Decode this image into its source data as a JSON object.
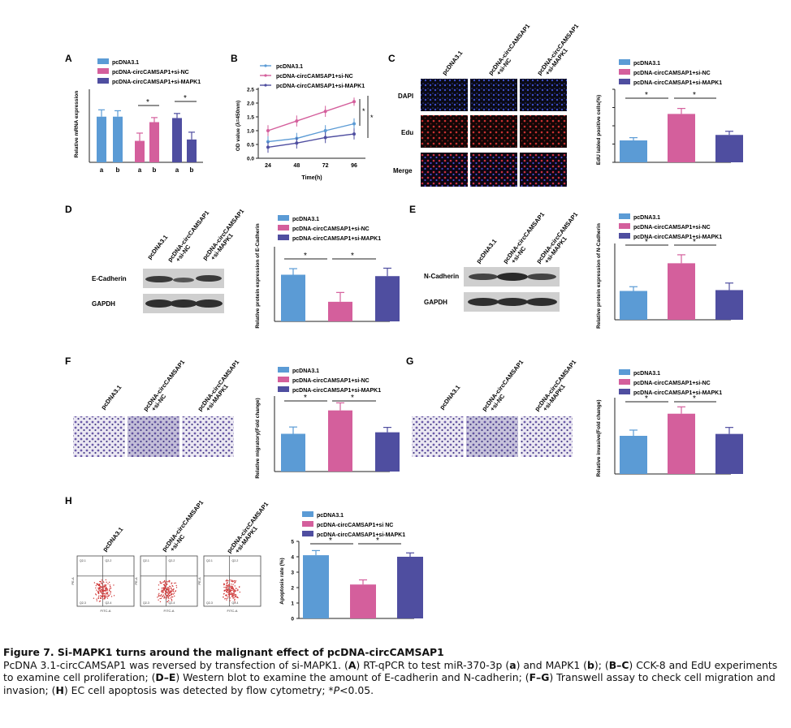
{
  "colors": {
    "c1": "#5b9bd5",
    "c2": "#d45f9c",
    "c3": "#4f4ea0",
    "blot": "#3a3a3a",
    "transwell": "#6b5aa8",
    "flow": "#d03a3a"
  },
  "figure": {
    "panels": [
      {
        "letter": "A"
      },
      {
        "letter": "B"
      },
      {
        "letter": "C"
      },
      {
        "letter": "D"
      },
      {
        "letter": "E"
      },
      {
        "letter": "F"
      },
      {
        "letter": "G"
      },
      {
        "letter": "H"
      }
    ],
    "legend_labels": {
      "l1": "pcDNA3.1",
      "l2": "pcDNA-circCAMSAP1+si-NC",
      "l3": "pcDNA-circCAMSAP1+si-MAPK1",
      "h2": "pcDNA-circCAMSAP1+si NC"
    },
    "group_labels": {
      "g1": "pcDNA3.1",
      "g2a": "pcDNA-circCAMSAP1",
      "g2b": "+si-NC",
      "g3a": "pcDNA-circCAMSAP1",
      "g3b": "+si-MAPK1"
    },
    "row_labels": {
      "dapi": "DAPI",
      "edu": "Edu",
      "merge": "Merge",
      "ecad": "E-Cadherin",
      "ncad": "N-Cadherin",
      "gapdh": "GAPDH"
    },
    "star": "*",
    "flow": {
      "q1": "Q2-1",
      "q2": "Q2-2",
      "q3": "Q2-3",
      "q4": "Q2-4",
      "xaxis": "FITC-A",
      "yaxis": "PE-A"
    }
  },
  "chart_data": [
    {
      "panel": "A",
      "type": "bar",
      "ylabel": "Relative mRNA expression",
      "ylim": [
        0,
        1.6
      ],
      "categories": [
        "a",
        "b",
        "a",
        "b",
        "a",
        "b"
      ],
      "values": [
        1.0,
        1.0,
        0.47,
        0.88,
        0.97,
        0.5
      ],
      "errors": [
        0.15,
        0.13,
        0.17,
        0.1,
        0.1,
        0.16
      ],
      "groups": [
        "pcDNA3.1",
        "pcDNA3.1",
        "pcDNA-circCAMSAP1+si-NC",
        "pcDNA-circCAMSAP1+si-NC",
        "pcDNA-circCAMSAP1+si-MAPK1",
        "pcDNA-circCAMSAP1+si-MAPK1"
      ]
    },
    {
      "panel": "B",
      "type": "line",
      "xlabel": "Time(h)",
      "ylabel": "OD value (λ=450nm)",
      "ylim": [
        0,
        2.5
      ],
      "x": [
        24,
        48,
        72,
        96
      ],
      "yticks": [
        "0.0",
        "0.5",
        "1.0",
        "1.5",
        "2.0",
        "2.5"
      ],
      "series": [
        {
          "name": "pcDNA3.1",
          "values": [
            0.6,
            0.72,
            1.0,
            1.25
          ],
          "errors": [
            0.2,
            0.2,
            0.2,
            0.2
          ]
        },
        {
          "name": "pcDNA-circCAMSAP1+si-NC",
          "values": [
            1.0,
            1.35,
            1.7,
            2.05
          ],
          "errors": [
            0.2,
            0.2,
            0.2,
            0.15
          ]
        },
        {
          "name": "pcDNA-circCAMSAP1+si-MAPK1",
          "values": [
            0.4,
            0.55,
            0.75,
            0.88
          ],
          "errors": [
            0.2,
            0.2,
            0.2,
            0.2
          ]
        }
      ]
    },
    {
      "panel": "C",
      "type": "bar",
      "ylabel": "EdU labled positive cells(%)",
      "ylim": [
        0,
        80
      ],
      "yticks": [
        "0",
        "20",
        "40",
        "60",
        "80"
      ],
      "categories": [
        "pcDNA3.1",
        "pcDNA-circCAMSAP1+si-NC",
        "pcDNA-circCAMSAP1+si-MAPK1"
      ],
      "values": [
        24,
        53,
        30
      ],
      "errors": [
        3,
        6,
        4
      ]
    },
    {
      "panel": "D",
      "type": "bar",
      "ylabel": "Relative protein expression of E-Cadherin",
      "categories": [
        "pcDNA3.1",
        "pcDNA-circCAMSAP1+si-NC",
        "pcDNA-circCAMSAP1+si-MAPK1"
      ],
      "values": [
        1.0,
        0.42,
        0.97
      ],
      "errors": [
        0.13,
        0.2,
        0.17
      ]
    },
    {
      "panel": "E",
      "type": "bar",
      "ylabel": "Relative protein expression of N-Cadherin",
      "categories": [
        "pcDNA3.1",
        "pcDNA-circCAMSAP1+si-NC",
        "pcDNA-circCAMSAP1+si-MAPK1"
      ],
      "values": [
        1.02,
        2.0,
        1.05
      ],
      "errors": [
        0.15,
        0.3,
        0.25
      ]
    },
    {
      "panel": "F",
      "type": "bar",
      "ylabel": "Relative migratory(Fold change)",
      "categories": [
        "pcDNA3.1",
        "pcDNA-circCAMSAP1+si-NC",
        "pcDNA-circCAMSAP1+si-MAPK1"
      ],
      "values": [
        1.0,
        1.62,
        1.04
      ],
      "errors": [
        0.18,
        0.2,
        0.13
      ]
    },
    {
      "panel": "G",
      "type": "bar",
      "ylabel": "Relative invasive(Fold change)",
      "categories": [
        "pcDNA3.1",
        "pcDNA-circCAMSAP1+si-NC",
        "pcDNA-circCAMSAP1+si-MAPK1"
      ],
      "values": [
        1.0,
        1.58,
        1.05
      ],
      "errors": [
        0.15,
        0.18,
        0.17
      ]
    },
    {
      "panel": "H",
      "type": "bar",
      "ylabel": "Apoptosis rate (%)",
      "ylim": [
        0,
        5
      ],
      "yticks": [
        "0",
        "1",
        "2",
        "3",
        "4",
        "5"
      ],
      "categories": [
        "pcDNA3.1",
        "pcDNA-circCAMSAP1+si NC",
        "pcDNA-circCAMSAP1+si-MAPK1"
      ],
      "values": [
        4.1,
        2.2,
        4.0
      ],
      "errors": [
        0.3,
        0.3,
        0.25
      ]
    }
  ],
  "caption": {
    "title": "Figure 7. Si-MAPK1 turns around the malignant effect of pcDNA-circCAMSAP1",
    "s1": "PcDNA 3.1-circCAMSAP1 was reversed by transfection of si-MAPK1. (",
    "b1": "A",
    "s2": ") RT-qPCR to test miR-370-3p (",
    "b2": "a",
    "s3": ") and MAPK1 (",
    "b3": "b",
    "s4": "); (",
    "b4": "B–C",
    "s5": ") CCK-8 and EdU experiments to examine cell proliferation; (",
    "b5": "D–E",
    "s6": ") Western blot to examine the amount of E-cadherin and N-cadherin; (",
    "b6": "F–G",
    "s7": ") Transwell assay to check cell migration and invasion; (",
    "b7": "H",
    "s8": ") EC cell apoptosis was detected by flow cytometry; *",
    "pval": "P",
    "s9": "<0.05."
  }
}
